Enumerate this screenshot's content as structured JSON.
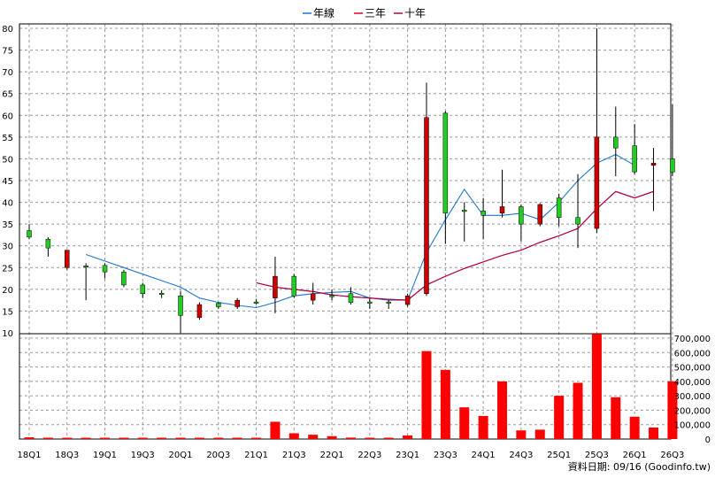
{
  "legend": [
    {
      "label": "年線",
      "color": "#1f77d0"
    },
    {
      "label": "三年",
      "color": "#e8002a"
    },
    {
      "label": "十年",
      "color": "#b0004a"
    }
  ],
  "footer": "資料日期: 09/16  (Goodinfo.tw)",
  "colors": {
    "up": "#22cc22",
    "down": "#cc0000",
    "volume": "#ff0000",
    "grid": "#999999",
    "wick": "#000000"
  },
  "chart_data": {
    "type": "candlestick+bar",
    "x_tick_labels": [
      "18Q1",
      "18Q3",
      "19Q1",
      "19Q3",
      "20Q1",
      "20Q3",
      "21Q1",
      "21Q3",
      "22Q1",
      "22Q3",
      "23Q1",
      "23Q3",
      "24Q1",
      "24Q3",
      "25Q1",
      "25Q3",
      "26Q1",
      "26Q3"
    ],
    "price_ticks": [
      10,
      15,
      20,
      25,
      30,
      35,
      40,
      45,
      50,
      55,
      60,
      65,
      70,
      75,
      80
    ],
    "price_ylim": [
      10,
      81
    ],
    "volume_ticks": [
      "0",
      "100,000",
      "200,000",
      "300,000",
      "400,000",
      "500,000",
      "600,000",
      "700,000"
    ],
    "volume_ylim": [
      0,
      700000
    ],
    "candles": [
      {
        "q": "18Q1",
        "o": 32,
        "c": 33.5,
        "h": 35,
        "l": 31.5
      },
      {
        "q": "18Q2",
        "o": 29.5,
        "c": 31.5,
        "h": 32,
        "l": 27.5
      },
      {
        "q": "18Q3",
        "o": 29,
        "c": 25,
        "h": 29,
        "l": 24.5
      },
      {
        "q": "18Q4",
        "o": 25.2,
        "c": 25.4,
        "h": 26,
        "l": 17.5
      },
      {
        "q": "19Q1",
        "o": 24,
        "c": 25.5,
        "h": 26,
        "l": 22.5
      },
      {
        "q": "19Q2",
        "o": 21,
        "c": 24,
        "h": 24.5,
        "l": 20.5
      },
      {
        "q": "19Q3",
        "o": 19,
        "c": 21,
        "h": 21.5,
        "l": 18
      },
      {
        "q": "19Q4",
        "o": 19,
        "c": 19.1,
        "h": 19.8,
        "l": 18
      },
      {
        "q": "20Q1",
        "o": 14,
        "c": 18.5,
        "h": 19.5,
        "l": 10
      },
      {
        "q": "20Q2",
        "o": 16.5,
        "c": 13.5,
        "h": 17,
        "l": 13
      },
      {
        "q": "20Q3",
        "o": 16,
        "c": 16.8,
        "h": 17,
        "l": 15.5
      },
      {
        "q": "20Q4",
        "o": 17.5,
        "c": 16,
        "h": 18,
        "l": 15.5
      },
      {
        "q": "21Q1",
        "o": 17,
        "c": 17.1,
        "h": 17.8,
        "l": 16.5
      },
      {
        "q": "21Q2",
        "o": 23,
        "c": 18,
        "h": 27.5,
        "l": 14.5
      },
      {
        "q": "21Q3",
        "o": 18.5,
        "c": 23,
        "h": 23.5,
        "l": 18
      },
      {
        "q": "21Q4",
        "o": 19,
        "c": 17.5,
        "h": 21.5,
        "l": 16.5
      },
      {
        "q": "22Q1",
        "o": 18.5,
        "c": 18.6,
        "h": 20,
        "l": 17.5
      },
      {
        "q": "22Q2",
        "o": 17,
        "c": 19,
        "h": 20.5,
        "l": 16.5
      },
      {
        "q": "22Q3",
        "o": 17,
        "c": 17.1,
        "h": 18,
        "l": 15.5
      },
      {
        "q": "22Q4",
        "o": 17,
        "c": 17.1,
        "h": 17.5,
        "l": 15.5
      },
      {
        "q": "23Q1",
        "o": 18.5,
        "c": 16.5,
        "h": 19,
        "l": 16
      },
      {
        "q": "23Q2",
        "o": 59.5,
        "c": 19,
        "h": 67.5,
        "l": 18.5
      },
      {
        "q": "23Q3",
        "o": 37.5,
        "c": 60.5,
        "h": 61,
        "l": 30.5
      },
      {
        "q": "23Q4",
        "o": 38,
        "c": 38.2,
        "h": 40,
        "l": 31
      },
      {
        "q": "24Q1",
        "o": 37,
        "c": 38,
        "h": 41,
        "l": 31.5
      },
      {
        "q": "24Q2",
        "o": 39,
        "c": 37.5,
        "h": 47.5,
        "l": 36.5
      },
      {
        "q": "24Q3",
        "o": 35,
        "c": 39,
        "h": 39.5,
        "l": 31
      },
      {
        "q": "24Q4",
        "o": 39.5,
        "c": 35,
        "h": 39.8,
        "l": 34.5
      },
      {
        "q": "25Q1",
        "o": 36.5,
        "c": 41,
        "h": 42,
        "l": 34.5
      },
      {
        "q": "25Q2",
        "o": 35,
        "c": 36.5,
        "h": 46.5,
        "l": 29.5
      },
      {
        "q": "25Q3",
        "o": 55,
        "c": 34,
        "h": 80,
        "l": 33
      },
      {
        "q": "25Q4",
        "o": 52.5,
        "c": 55,
        "h": 62,
        "l": 46
      },
      {
        "q": "26Q1",
        "o": 47,
        "c": 53,
        "h": 58,
        "l": 46.5
      },
      {
        "q": "26Q2",
        "o": 49,
        "c": 48.5,
        "h": 52.5,
        "l": 38
      },
      {
        "q": "26Q3",
        "o": 47,
        "c": 50,
        "h": 62.5,
        "l": 46
      }
    ],
    "series": [
      {
        "name": "年線",
        "start": 3,
        "values": [
          28,
          26.5,
          25,
          23.5,
          22,
          20.5,
          18,
          17,
          16.3,
          15.8,
          17,
          18.5,
          19,
          19.3,
          19.5,
          18,
          17.5,
          17.5,
          28.5,
          36,
          43,
          37,
          37,
          37.5,
          36,
          40,
          45,
          49,
          51,
          48.5
        ]
      },
      {
        "name": "三年",
        "start": 12,
        "values": [
          21.5,
          20.5,
          20,
          19.5,
          18.7,
          18.3,
          18,
          17.7,
          17.5,
          21,
          23,
          24.8,
          26.3,
          27.8,
          29,
          30.8,
          32.3,
          34,
          38.5,
          42.5,
          41,
          42.5
        ]
      },
      {
        "name": "十年",
        "start": 12,
        "values": [
          21.5,
          20.5,
          20,
          19.5,
          18.7,
          18.3,
          18,
          17.7,
          17.5,
          21,
          23,
          24.8,
          26.3,
          27.8,
          29,
          30.8,
          32.3,
          34,
          38.5,
          42.5,
          41,
          42.5
        ]
      }
    ],
    "volumes": [
      12000,
      2000,
      2000,
      2000,
      2000,
      2000,
      2000,
      2000,
      2000,
      2000,
      2000,
      2000,
      2000,
      120000,
      40000,
      30000,
      20000,
      10000,
      5000,
      5000,
      25000,
      610000,
      480000,
      220000,
      160000,
      400000,
      60000,
      65000,
      300000,
      390000,
      730000,
      290000,
      155000,
      80000,
      400000
    ]
  }
}
